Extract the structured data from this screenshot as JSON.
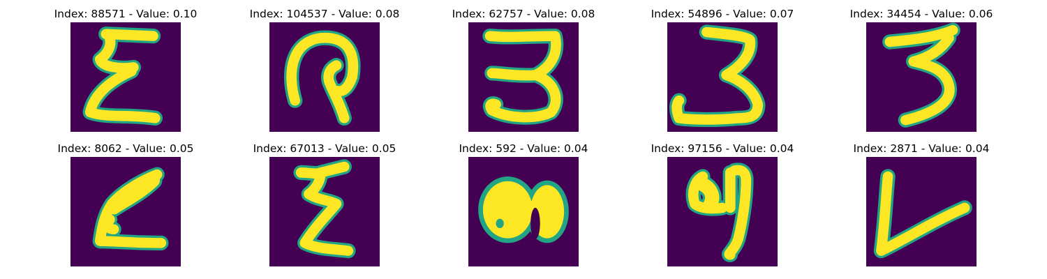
{
  "colors": {
    "background": "#440154",
    "stroke": "#fde725",
    "edge": "#21a585"
  },
  "panels": [
    {
      "title": "Index: 88571 - Value: 0.10",
      "index": 88571,
      "value": 0.1,
      "glyph": "script-E"
    },
    {
      "title": "Index: 104537 - Value: 0.08",
      "index": 104537,
      "value": 0.08,
      "glyph": "loop-P"
    },
    {
      "title": "Index: 62757 - Value: 0.08",
      "index": 62757,
      "value": 0.08,
      "glyph": "digit-3"
    },
    {
      "title": "Index: 54896 - Value: 0.07",
      "index": 54896,
      "value": 0.07,
      "glyph": "digit-3"
    },
    {
      "title": "Index: 34454 - Value: 0.06",
      "index": 34454,
      "value": 0.06,
      "glyph": "digit-3"
    },
    {
      "title": "Index: 8062 - Value: 0.05",
      "index": 8062,
      "value": 0.05,
      "glyph": "slanted-A"
    },
    {
      "title": "Index: 67013 - Value: 0.05",
      "index": 67013,
      "value": 0.05,
      "glyph": "zigzag-Z"
    },
    {
      "title": "Index: 592 - Value: 0.04",
      "index": 592,
      "value": 0.04,
      "glyph": "filled-8"
    },
    {
      "title": "Index: 97156 - Value: 0.04",
      "index": 97156,
      "value": 0.04,
      "glyph": "digit-9-like"
    },
    {
      "title": "Index: 2871 - Value: 0.04",
      "index": 2871,
      "value": 0.04,
      "glyph": "check-V"
    }
  ]
}
